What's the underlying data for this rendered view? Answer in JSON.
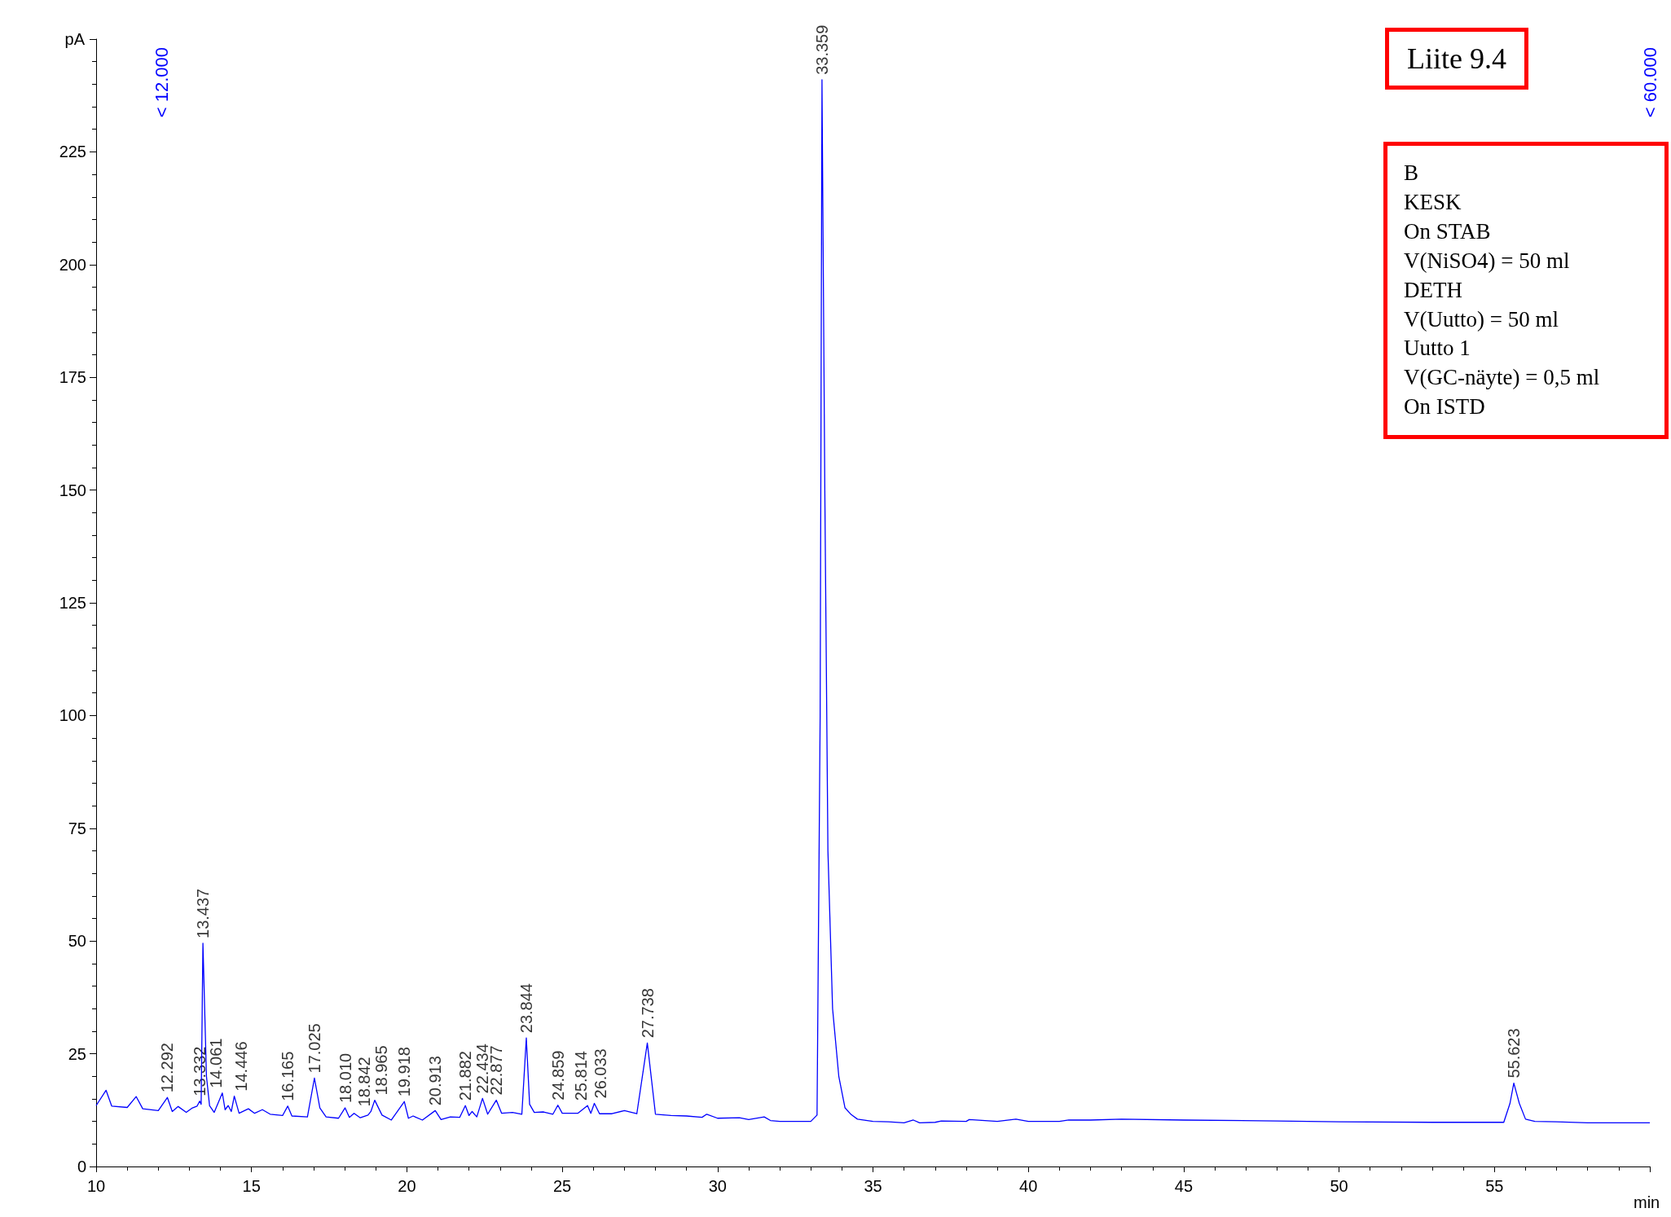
{
  "chart_data": {
    "type": "line",
    "ylabel": "pA",
    "xlabel": "min",
    "x": [
      10,
      10.32,
      10.5,
      11,
      11.29,
      11.5,
      12,
      12.292,
      12.45,
      12.64,
      12.9,
      13.1,
      13.25,
      13.332,
      13.38,
      13.437,
      13.55,
      13.65,
      13.8,
      14.061,
      14.15,
      14.25,
      14.35,
      14.446,
      14.6,
      14.9,
      15.1,
      15.35,
      15.6,
      16,
      16.165,
      16.3,
      16.8,
      17.025,
      17.2,
      17.4,
      17.8,
      18.01,
      18.15,
      18.3,
      18.5,
      18.75,
      18.842,
      18.965,
      19.2,
      19.5,
      19.918,
      20.05,
      20.2,
      20.5,
      20.913,
      21.1,
      21.4,
      21.7,
      21.882,
      22,
      22.1,
      22.25,
      22.434,
      22.6,
      22.877,
      23.05,
      23.4,
      23.7,
      23.844,
      23.95,
      24.1,
      24.4,
      24.7,
      24.859,
      25,
      25.5,
      25.814,
      25.92,
      26.033,
      26.2,
      26.6,
      27,
      27.4,
      27.738,
      28,
      28.5,
      29,
      29.5,
      29.65,
      30,
      30.7,
      31,
      31.5,
      31.7,
      32,
      32.5,
      33,
      33.2,
      33.3,
      33.359,
      33.45,
      33.55,
      33.7,
      33.9,
      34.1,
      34.3,
      34.5,
      35,
      35.5,
      36,
      36.3,
      36.5,
      37,
      37.2,
      38,
      38.1,
      39,
      39.6,
      40,
      41,
      41.3,
      42,
      43,
      45,
      48,
      50,
      53,
      55.3,
      55.5,
      55.623,
      55.8,
      56,
      56.3,
      57,
      58,
      60
    ],
    "values": [
      13.5,
      16.9,
      13.4,
      13.1,
      15.5,
      12.8,
      12.4,
      15.3,
      12.2,
      13.3,
      12,
      13,
      13.4,
      14.5,
      13.8,
      49.5,
      20,
      13.5,
      12,
      16.3,
      12.6,
      13.5,
      12.2,
      15.6,
      11.8,
      12.8,
      11.8,
      12.6,
      11.6,
      11.3,
      13.4,
      11.2,
      11,
      19.6,
      13,
      11,
      10.7,
      13,
      10.9,
      11.8,
      10.8,
      11.4,
      12.2,
      14.7,
      11.4,
      10.3,
      14.4,
      10.7,
      11.2,
      10.3,
      12.4,
      10.4,
      11,
      10.9,
      13.5,
      11.3,
      12.2,
      11,
      15.1,
      11.6,
      14.7,
      11.8,
      12,
      11.6,
      28.5,
      13.8,
      12,
      12.1,
      11.6,
      13.6,
      11.8,
      11.8,
      13.5,
      11.8,
      14,
      11.7,
      11.7,
      12.4,
      11.7,
      27.4,
      11.6,
      11.3,
      11.2,
      10.9,
      11.6,
      10.7,
      10.8,
      10.4,
      11,
      10.2,
      10,
      10,
      10,
      11.4,
      100,
      241,
      150,
      70,
      35,
      20,
      13,
      11.5,
      10.5,
      10,
      9.9,
      9.7,
      10.3,
      9.7,
      9.8,
      10.1,
      10,
      10.4,
      10,
      10.5,
      10,
      10,
      10.3,
      10.3,
      10.5,
      10.3,
      10.1,
      9.9,
      9.8,
      9.8,
      14,
      18.5,
      14,
      10.5,
      10,
      9.9,
      9.7,
      9.7
    ],
    "color": "#0000ff",
    "marker": "none",
    "xlim": [
      10,
      60
    ],
    "xticks": [
      10,
      15,
      20,
      25,
      30,
      35,
      40,
      45,
      50,
      55
    ],
    "ylim": [
      0,
      250
    ],
    "yticks": [
      0,
      25,
      50,
      75,
      100,
      125,
      150,
      175,
      200,
      225
    ],
    "grid": false,
    "annotations": [
      "Liite 9.4",
      "B\nKESK\nOn STAB\nV(NiSO4) = 50 ml\nDETH\nV(Uutto) = 50 ml\nUutto 1\nV(GC-näyte) = 0,5 ml\nOn ISTD",
      "< 12.000",
      "< 60.000",
      {
        "text": "12.292",
        "x": 12.292,
        "y": 15.3
      },
      {
        "text": "13.332",
        "x": 13.332,
        "y": 14.5
      },
      {
        "text": "13.437",
        "x": 13.437,
        "y": 49.5
      },
      {
        "text": "14.061",
        "x": 14.061,
        "y": 16.3
      },
      {
        "text": "14.446",
        "x": 14.446,
        "y": 15.6
      },
      {
        "text": "16.165",
        "x": 16.165,
        "y": 13.4
      },
      {
        "text": "17.025",
        "x": 17.025,
        "y": 19.6
      },
      {
        "text": "18.010",
        "x": 18.01,
        "y": 13
      },
      {
        "text": "18.842",
        "x": 18.842,
        "y": 12.2
      },
      {
        "text": "18.965",
        "x": 18.965,
        "y": 14.7
      },
      {
        "text": "19.918",
        "x": 19.918,
        "y": 14.4
      },
      {
        "text": "20.913",
        "x": 20.913,
        "y": 12.4
      },
      {
        "text": "21.882",
        "x": 21.882,
        "y": 13.5
      },
      {
        "text": "22.434",
        "x": 22.434,
        "y": 15.1
      },
      {
        "text": "22.877",
        "x": 22.877,
        "y": 14.7
      },
      {
        "text": "23.844",
        "x": 23.844,
        "y": 28.5
      },
      {
        "text": "24.859",
        "x": 24.859,
        "y": 13.6
      },
      {
        "text": "25.814",
        "x": 25.814,
        "y": 13.5
      },
      {
        "text": "26.033",
        "x": 26.033,
        "y": 14
      },
      {
        "text": "27.738",
        "x": 27.738,
        "y": 27.4
      },
      {
        "text": "33.359",
        "x": 33.359,
        "y": 241
      },
      {
        "text": "55.623",
        "x": 55.623,
        "y": 18.5
      }
    ]
  }
}
